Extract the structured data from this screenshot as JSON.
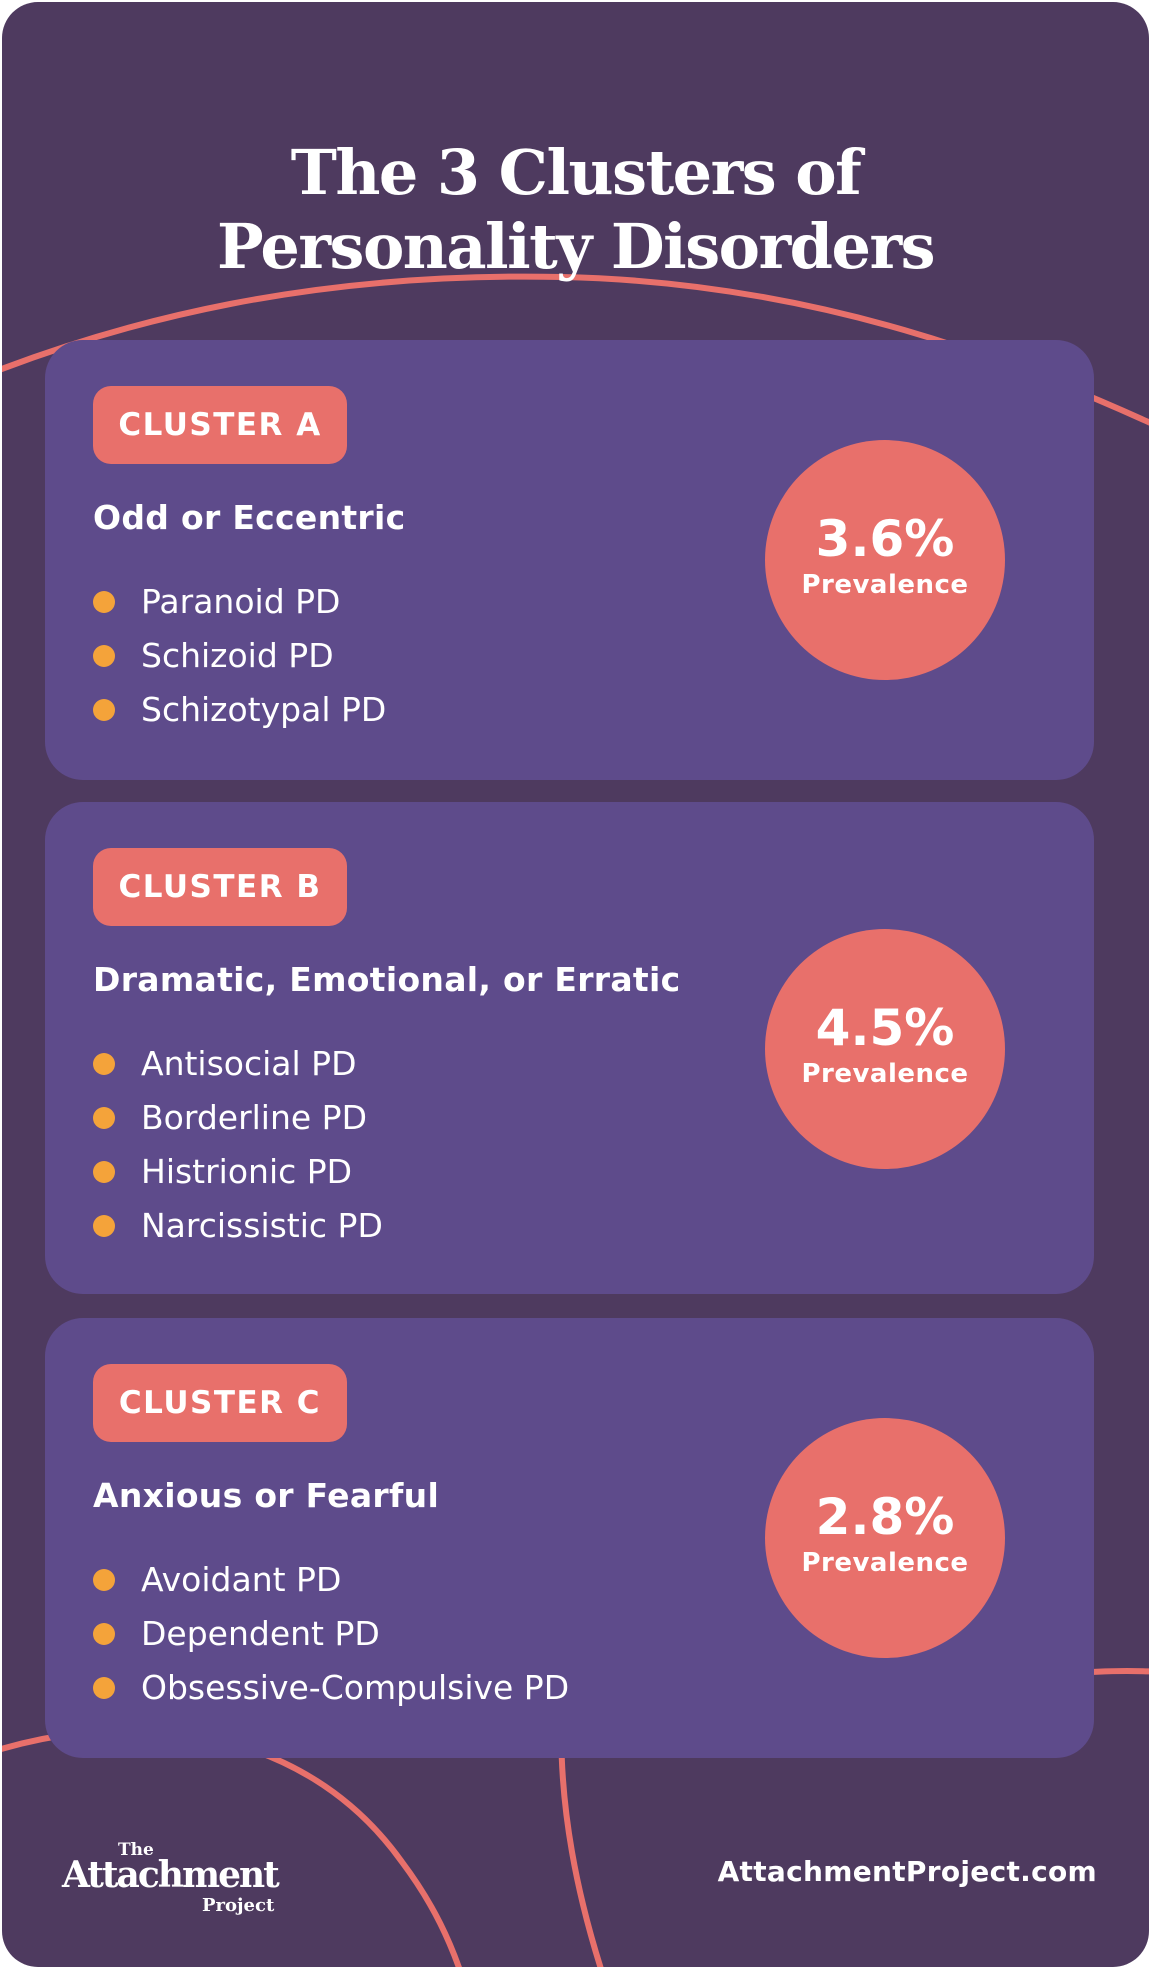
{
  "title": {
    "line1": "The 3 Clusters of",
    "line2": "Personality Disorders"
  },
  "colors": {
    "background": "#4e3a5f",
    "card": "#5e4b8b",
    "accent": "#e8706b",
    "bullet": "#f4a33a",
    "text": "#ffffff"
  },
  "clusters": [
    {
      "badge": "CLUSTER A",
      "subtitle": "Odd or Eccentric",
      "items": [
        "Paranoid PD",
        "Schizoid PD",
        "Schizotypal PD"
      ],
      "prevalence_value": "3.6%",
      "prevalence_label": "Prevalence"
    },
    {
      "badge": "CLUSTER B",
      "subtitle": "Dramatic, Emotional, or Erratic",
      "items": [
        "Antisocial PD",
        "Borderline PD",
        "Histrionic PD",
        "Narcissistic PD"
      ],
      "prevalence_value": "4.5%",
      "prevalence_label": "Prevalence"
    },
    {
      "badge": "CLUSTER C",
      "subtitle": "Anxious or Fearful",
      "items": [
        "Avoidant PD",
        "Dependent PD",
        "Obsessive-Compulsive PD"
      ],
      "prevalence_value": "2.8%",
      "prevalence_label": "Prevalence"
    }
  ],
  "footer": {
    "logo_the": "The",
    "logo_main": "Attachment",
    "logo_project": "Project",
    "website": "AttachmentProject.com"
  }
}
